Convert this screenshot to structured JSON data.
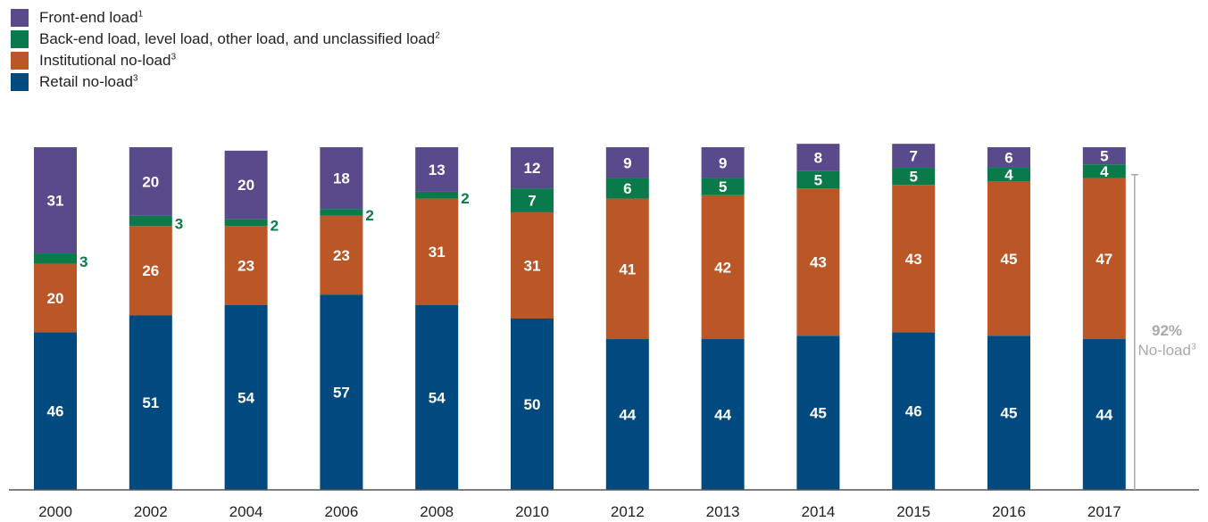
{
  "legend": [
    {
      "label": "Front-end load",
      "note": "1",
      "color": "#5b4a8b"
    },
    {
      "label": "Back-end load, level load, other load, and unclassified load",
      "note": "2",
      "color": "#0b7a4a"
    },
    {
      "label": "Institutional no-load",
      "note": "3",
      "color": "#bb5627"
    },
    {
      "label": "Retail no-load",
      "note": "3",
      "color": "#004a80"
    }
  ],
  "annotation": {
    "value": "92%",
    "label": "No-load",
    "note": "3"
  },
  "chart_data": {
    "type": "bar",
    "stacked": true,
    "categories": [
      "2000",
      "2002",
      "2004",
      "2006",
      "2008",
      "2010",
      "2012",
      "2013",
      "2014",
      "2015",
      "2016",
      "2017"
    ],
    "series": [
      {
        "name": "Retail no-load",
        "values": [
          46,
          51,
          54,
          57,
          54,
          50,
          44,
          44,
          45,
          46,
          45,
          44
        ]
      },
      {
        "name": "Institutional no-load",
        "values": [
          20,
          26,
          23,
          23,
          31,
          31,
          41,
          42,
          43,
          43,
          45,
          47
        ]
      },
      {
        "name": "Back-end load, level load, other load, and unclassified load",
        "values": [
          3,
          3,
          2,
          2,
          2,
          7,
          6,
          5,
          5,
          5,
          4,
          4
        ]
      },
      {
        "name": "Front-end load",
        "values": [
          31,
          20,
          20,
          18,
          13,
          12,
          9,
          9,
          8,
          7,
          6,
          5
        ]
      }
    ],
    "outside_label_categories": [
      "2000",
      "2002",
      "2004",
      "2006",
      "2008"
    ],
    "xlabel": "",
    "ylabel": "",
    "ylim": [
      0,
      100
    ],
    "grid": false
  }
}
